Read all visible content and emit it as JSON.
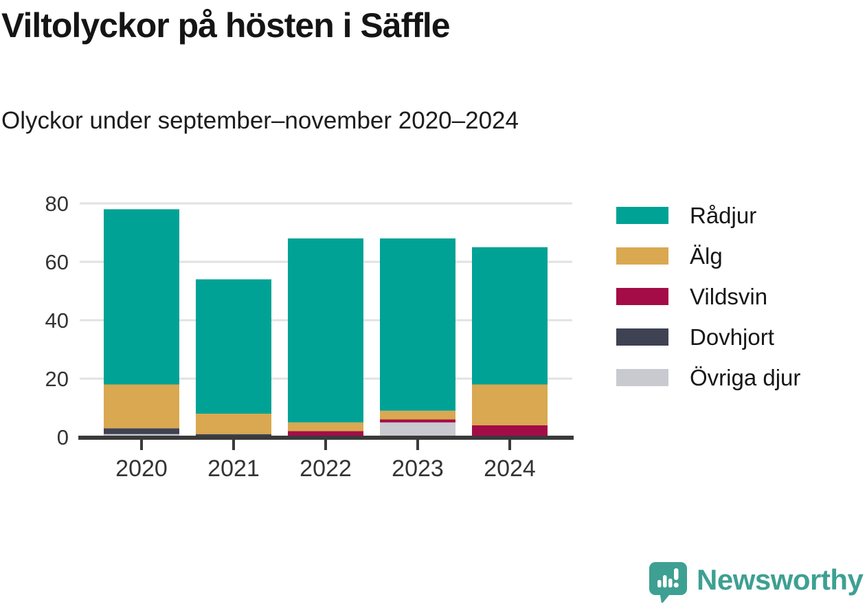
{
  "title": "Viltolyckor på hösten i Säffle",
  "subtitle": "Olyckor under september–november 2020–2024",
  "chart_data": {
    "type": "bar",
    "stacked": true,
    "title": "Viltolyckor på hösten i Säffle",
    "xlabel": "",
    "ylabel": "",
    "categories": [
      "2020",
      "2021",
      "2022",
      "2023",
      "2024"
    ],
    "series": [
      {
        "name": "Rådjur",
        "color": "#00a296",
        "values": [
          60,
          46,
          63,
          59,
          47
        ]
      },
      {
        "name": "Älg",
        "color": "#d9a850",
        "values": [
          15,
          7,
          3,
          3,
          14
        ]
      },
      {
        "name": "Vildsvin",
        "color": "#a40c47",
        "values": [
          0,
          0,
          2,
          1,
          4
        ]
      },
      {
        "name": "Dovhjort",
        "color": "#3f4252",
        "values": [
          2,
          1,
          0,
          0,
          0
        ]
      },
      {
        "name": "Övriga djur",
        "color": "#c9c9d0",
        "values": [
          1,
          0,
          0,
          5,
          0
        ]
      }
    ],
    "stack_order_bottom_to_top": [
      "Övriga djur",
      "Dovhjort",
      "Vildsvin",
      "Älg",
      "Rådjur"
    ],
    "totals": [
      78,
      54,
      68,
      68,
      65
    ],
    "y_ticks": [
      0,
      20,
      40,
      60,
      80
    ],
    "ylim": [
      0,
      80
    ],
    "grid": "horizontal",
    "legend_position": "right"
  },
  "branding": {
    "logo_text": "Newsworthy",
    "logo_color": "#3ea092"
  },
  "colors": {
    "axis_line": "#3a3a3a",
    "gridline": "#e2e2e2",
    "tick_label": "#333333"
  }
}
